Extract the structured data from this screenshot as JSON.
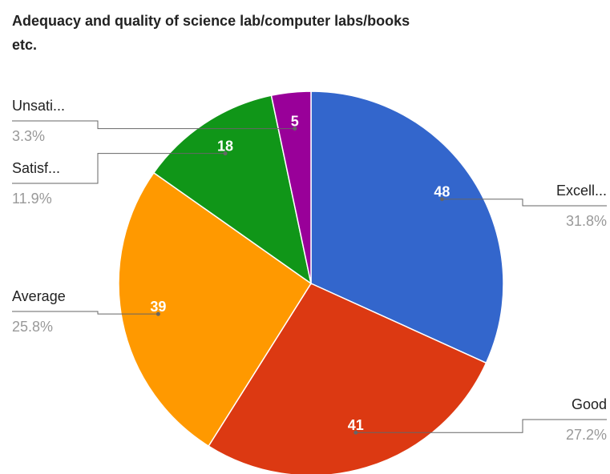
{
  "chart_data": {
    "type": "pie",
    "title_lines": [
      "Adequacy and quality of science lab/computer labs/books",
      "etc."
    ],
    "categories": [
      "Excell...",
      "Good",
      "Average",
      "Satisf...",
      "Unsati..."
    ],
    "values": [
      48,
      41,
      39,
      18,
      5
    ],
    "percent_labels": [
      "31.8%",
      "27.2%",
      "25.8%",
      "11.9%",
      "3.3%"
    ],
    "colors": [
      "#3366cc",
      "#dc3912",
      "#ff9900",
      "#109618",
      "#990099"
    ]
  }
}
